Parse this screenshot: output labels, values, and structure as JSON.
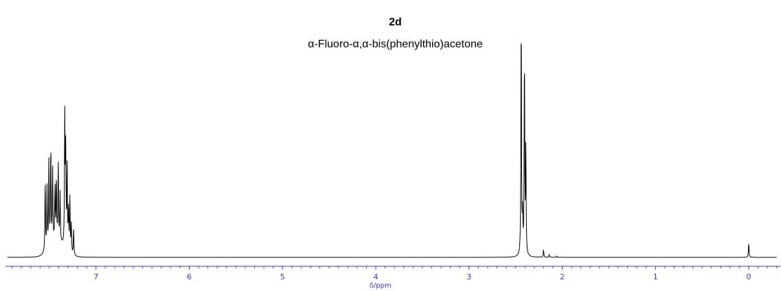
{
  "chart_data": {
    "type": "line",
    "title": "2d",
    "subtitle": "α-Fluoro-α,α-bis(phenylthio)acetone",
    "xlabel": "δ/ppm",
    "ylabel": "",
    "x_reversed": true,
    "xlim": [
      -0.3,
      7.95
    ],
    "ylim": [
      0,
      1.0
    ],
    "ticks": [
      {
        "value": 7,
        "label": "7"
      },
      {
        "value": 6,
        "label": "6"
      },
      {
        "value": 5,
        "label": "5"
      },
      {
        "value": 4,
        "label": "4"
      },
      {
        "value": 3,
        "label": "3"
      },
      {
        "value": 2,
        "label": "2"
      },
      {
        "value": 1,
        "label": "1"
      },
      {
        "value": 0,
        "label": "0"
      }
    ],
    "grid": false,
    "axis_color": "#3333ff",
    "line_color": "#000000",
    "baseline": 0.005,
    "peaks": [
      {
        "x": 7.545,
        "y": 0.29
      },
      {
        "x": 7.525,
        "y": 0.25
      },
      {
        "x": 7.505,
        "y": 0.36
      },
      {
        "x": 7.485,
        "y": 0.41
      },
      {
        "x": 7.465,
        "y": 0.3
      },
      {
        "x": 7.44,
        "y": 0.22
      },
      {
        "x": 7.425,
        "y": 0.26
      },
      {
        "x": 7.405,
        "y": 0.32
      },
      {
        "x": 7.385,
        "y": 0.2
      },
      {
        "x": 7.335,
        "y": 0.53
      },
      {
        "x": 7.325,
        "y": 0.38
      },
      {
        "x": 7.31,
        "y": 0.35
      },
      {
        "x": 7.295,
        "y": 0.18
      },
      {
        "x": 7.28,
        "y": 0.22
      },
      {
        "x": 7.265,
        "y": 0.12
      },
      {
        "x": 7.24,
        "y": 0.11
      },
      {
        "x": 2.44,
        "y": 1.0
      },
      {
        "x": 2.425,
        "y": 0.15
      },
      {
        "x": 2.405,
        "y": 0.83
      },
      {
        "x": 2.39,
        "y": 0.43
      },
      {
        "x": 2.2,
        "y": 0.035
      },
      {
        "x": 2.14,
        "y": 0.015
      },
      {
        "x": 2.06,
        "y": 0.01
      },
      {
        "x": 0.0,
        "y": 0.065
      }
    ]
  }
}
